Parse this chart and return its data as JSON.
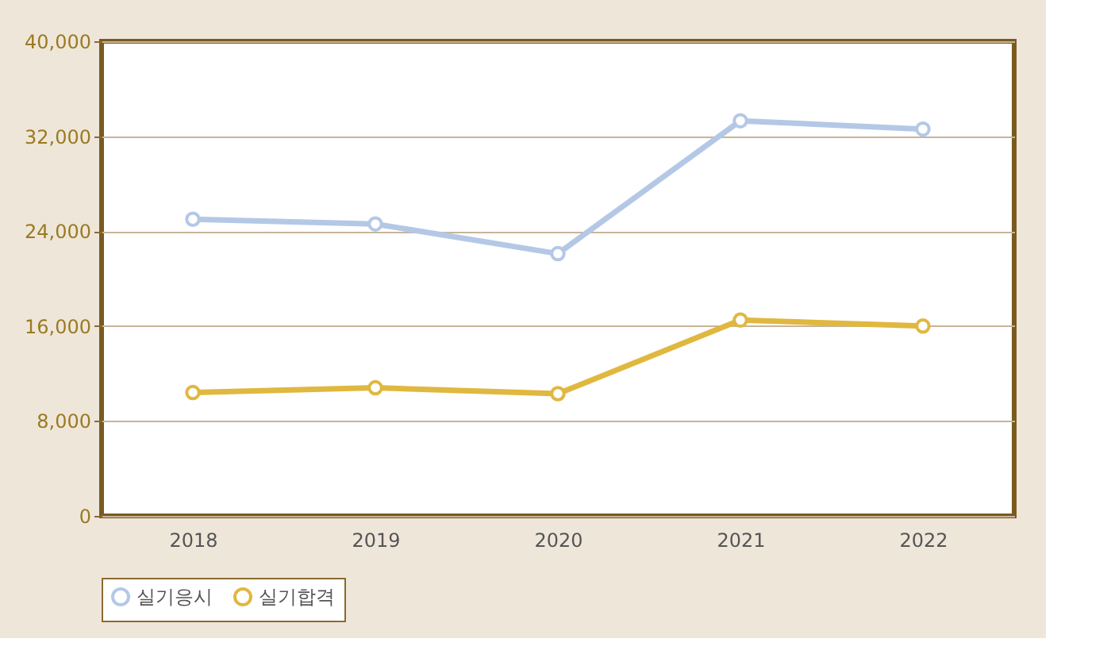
{
  "chart_data": {
    "type": "line",
    "categories": [
      "2018",
      "2019",
      "2020",
      "2021",
      "2022"
    ],
    "series": [
      {
        "name": "실기응시",
        "color": "#b4c8e6",
        "values": [
          25000,
          24600,
          22100,
          33300,
          32600
        ]
      },
      {
        "name": "실기합격",
        "color": "#e0b840",
        "values": [
          10400,
          10800,
          10300,
          16500,
          16000
        ]
      }
    ],
    "ylim": [
      0,
      40000
    ],
    "yticks": [
      0,
      {
        "value": 8000,
        "label": "8,000"
      },
      {
        "value": 16000,
        "label": "16,000"
      },
      {
        "value": 24000,
        "label": "24,000"
      },
      {
        "value": 32000,
        "label": "32,000"
      },
      {
        "value": 40000,
        "label": "40,000"
      }
    ],
    "grid": "y",
    "legend": "bottom",
    "marker": "circle",
    "line_style": "solid"
  }
}
